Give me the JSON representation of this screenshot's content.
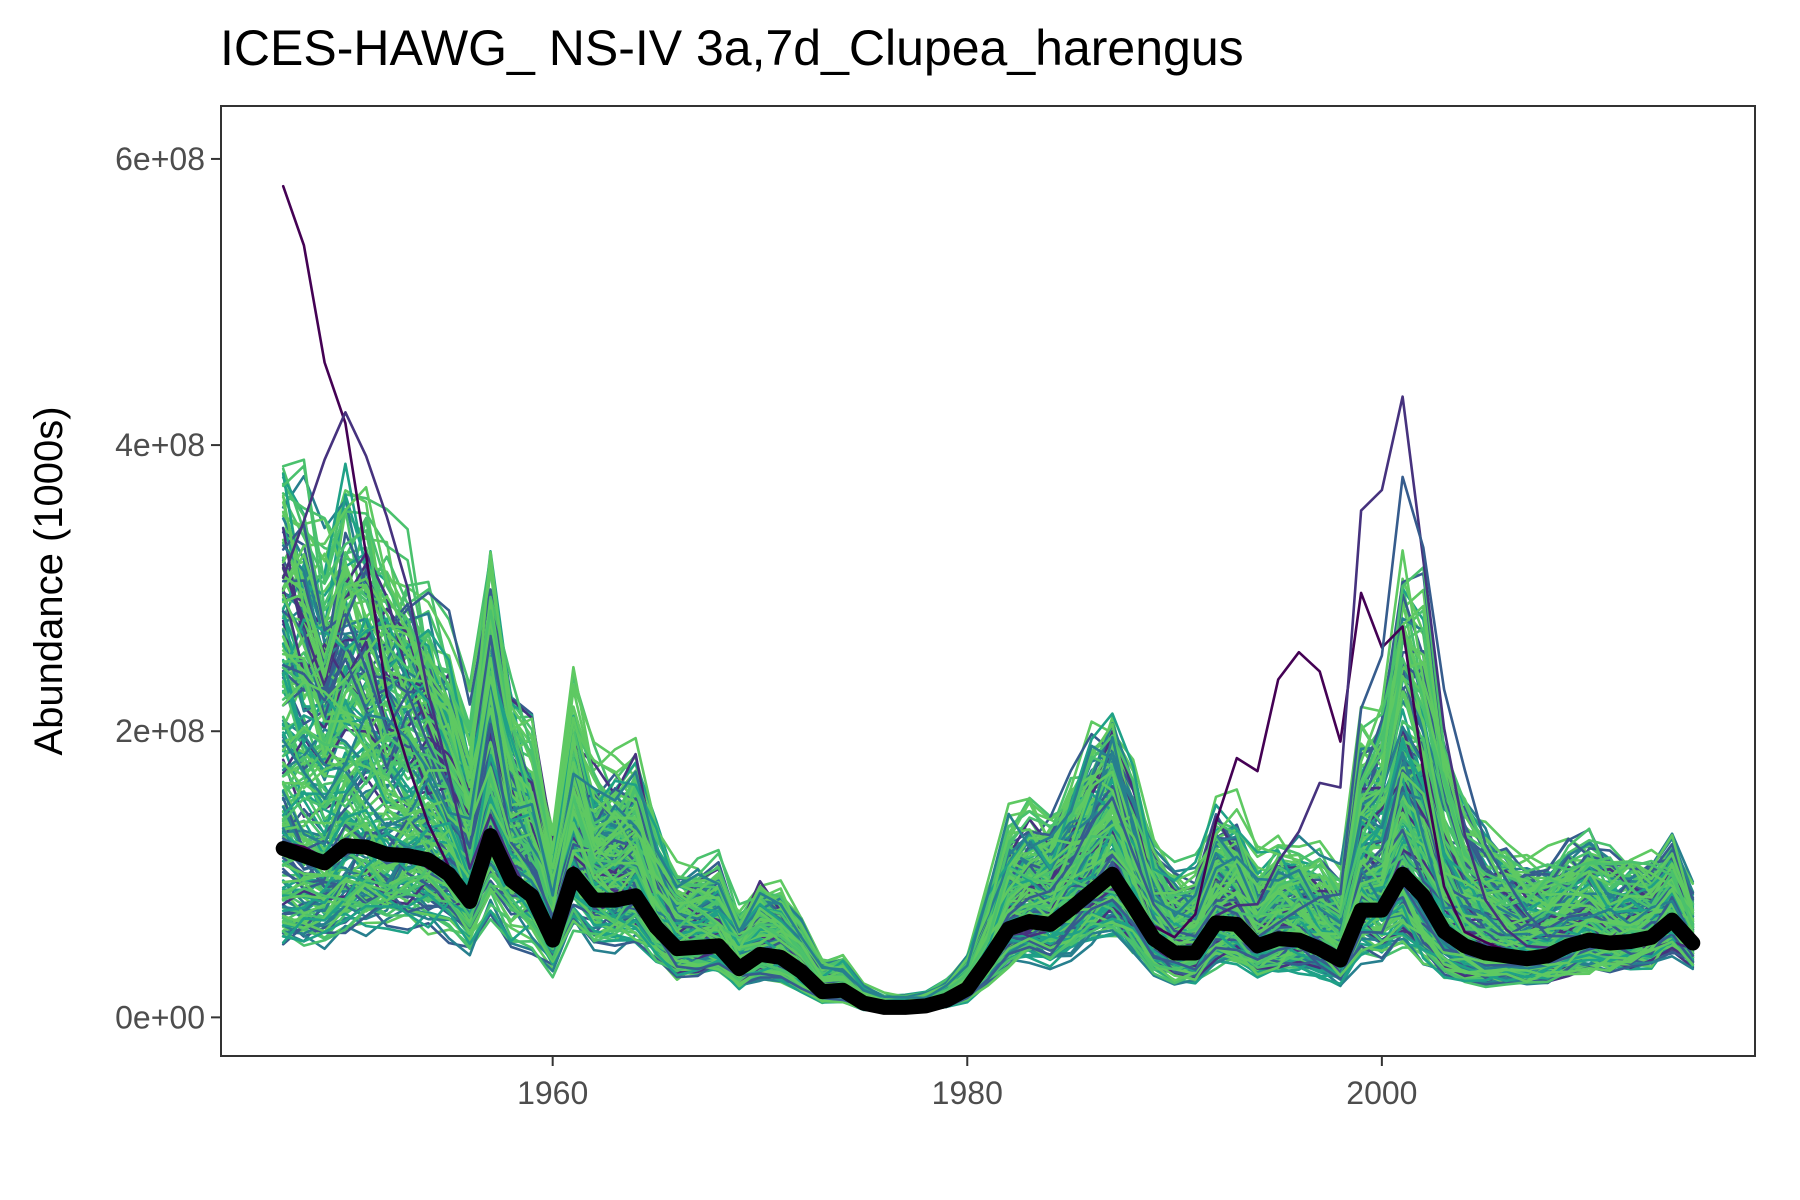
{
  "chart_data": {
    "type": "line",
    "title": "ICES-HAWG_ NS-IV 3a,7d_Clupea_harengus",
    "xlabel": "",
    "ylabel": "Abundance (1000s)",
    "xlim": [
      1944,
      2018
    ],
    "ylim": [
      -27000000,
      637000000
    ],
    "x_ticks": [
      1960,
      1980,
      2000
    ],
    "x_tick_labels": [
      "1960",
      "1980",
      "2000"
    ],
    "y_ticks": [
      0,
      200000000,
      400000000,
      600000000
    ],
    "y_tick_labels": [
      "0e+00",
      "2e+08",
      "4e+08",
      "6e+08"
    ],
    "grid": false,
    "legend": "none",
    "x": [
      1947,
      1948,
      1949,
      1950,
      1951,
      1952,
      1953,
      1954,
      1955,
      1956,
      1957,
      1958,
      1959,
      1960,
      1961,
      1962,
      1963,
      1964,
      1965,
      1966,
      1967,
      1968,
      1969,
      1970,
      1971,
      1972,
      1973,
      1974,
      1975,
      1976,
      1977,
      1978,
      1979,
      1980,
      1981,
      1982,
      1983,
      1984,
      1985,
      1986,
      1987,
      1988,
      1989,
      1990,
      1991,
      1992,
      1993,
      1994,
      1995,
      1996,
      1997,
      1998,
      1999,
      2000,
      2001,
      2002,
      2003,
      2004,
      2005,
      2006,
      2007,
      2008,
      2009,
      2010,
      2011,
      2012,
      2013,
      2014,
      2015
    ],
    "median_series": {
      "color": "#000000",
      "values": [
        118000000,
        113000000,
        108000000,
        120000000,
        119000000,
        114000000,
        113000000,
        110000000,
        100000000,
        81000000,
        127000000,
        96000000,
        85000000,
        54000000,
        100000000,
        82000000,
        82000000,
        85000000,
        63000000,
        48000000,
        49000000,
        50000000,
        34000000,
        44000000,
        42000000,
        32000000,
        18000000,
        19000000,
        10000000,
        7000000,
        7000000,
        8000000,
        12000000,
        20000000,
        40000000,
        62000000,
        67000000,
        65000000,
        76000000,
        88000000,
        100000000,
        78000000,
        55000000,
        45000000,
        45000000,
        66000000,
        65000000,
        50000000,
        55000000,
        54000000,
        48000000,
        40000000,
        75000000,
        75000000,
        100000000,
        85000000,
        60000000,
        50000000,
        45000000,
        43000000,
        41000000,
        43000000,
        50000000,
        54000000,
        52000000,
        53000000,
        56000000,
        68000000,
        52000000
      ]
    },
    "ensemble": {
      "count": 220,
      "palette": [
        "#440154",
        "#46327e",
        "#365c8d",
        "#277f8e",
        "#1fa187",
        "#4ac16d",
        "#5ec962"
      ],
      "reference_peaks": [
        {
          "x": 1947,
          "value": 607000000
        },
        {
          "x": 1950,
          "value": 430000000
        },
        {
          "x": 1987,
          "value": 158000000
        },
        {
          "x": 1997,
          "value": 240000000
        },
        {
          "x": 2000,
          "value": 350000000
        },
        {
          "x": 2002,
          "value": 335000000
        }
      ]
    }
  }
}
